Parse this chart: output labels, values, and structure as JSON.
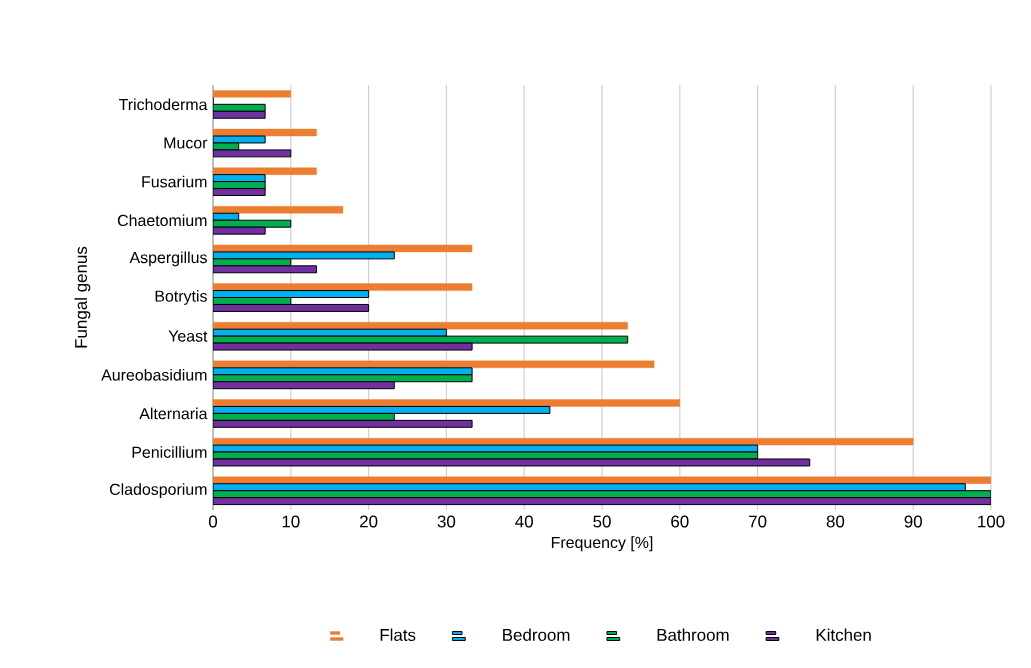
{
  "chart_data": {
    "type": "bar",
    "orientation": "horizontal",
    "xlabel": "Frequency [%]",
    "ylabel": "Fungal genus",
    "categories": [
      "Trichoderma",
      "Mucor",
      "Fusarium",
      "Chaetomium",
      "Aspergillus",
      "Botrytis",
      "Yeast",
      "Aureobasidium",
      "Alternaria",
      "Penicillium",
      "Cladosporium"
    ],
    "series": [
      {
        "name": "Flats",
        "color": "#ed7d31",
        "values": [
          10,
          13.3,
          13.3,
          16.7,
          33.3,
          33.3,
          53.3,
          56.7,
          60,
          90,
          100
        ]
      },
      {
        "name": "Bedroom",
        "color": "#00b0f0",
        "values": [
          0,
          6.7,
          6.7,
          3.3,
          23.3,
          20,
          30,
          33.3,
          43.3,
          70,
          96.7
        ]
      },
      {
        "name": "Bathroom",
        "color": "#00b050",
        "values": [
          6.7,
          3.3,
          6.7,
          10,
          10,
          10,
          53.3,
          33.3,
          23.3,
          70,
          100
        ]
      },
      {
        "name": "Kitchen",
        "color": "#7030a0",
        "values": [
          6.7,
          10,
          6.7,
          6.7,
          13.3,
          20,
          33.3,
          23.3,
          33.3,
          76.7,
          100
        ]
      }
    ],
    "xlim": [
      0,
      100
    ],
    "xticks": [
      0,
      10,
      20,
      30,
      40,
      50,
      60,
      70,
      80,
      90,
      100
    ],
    "grid": "x",
    "legend": "bottom"
  }
}
